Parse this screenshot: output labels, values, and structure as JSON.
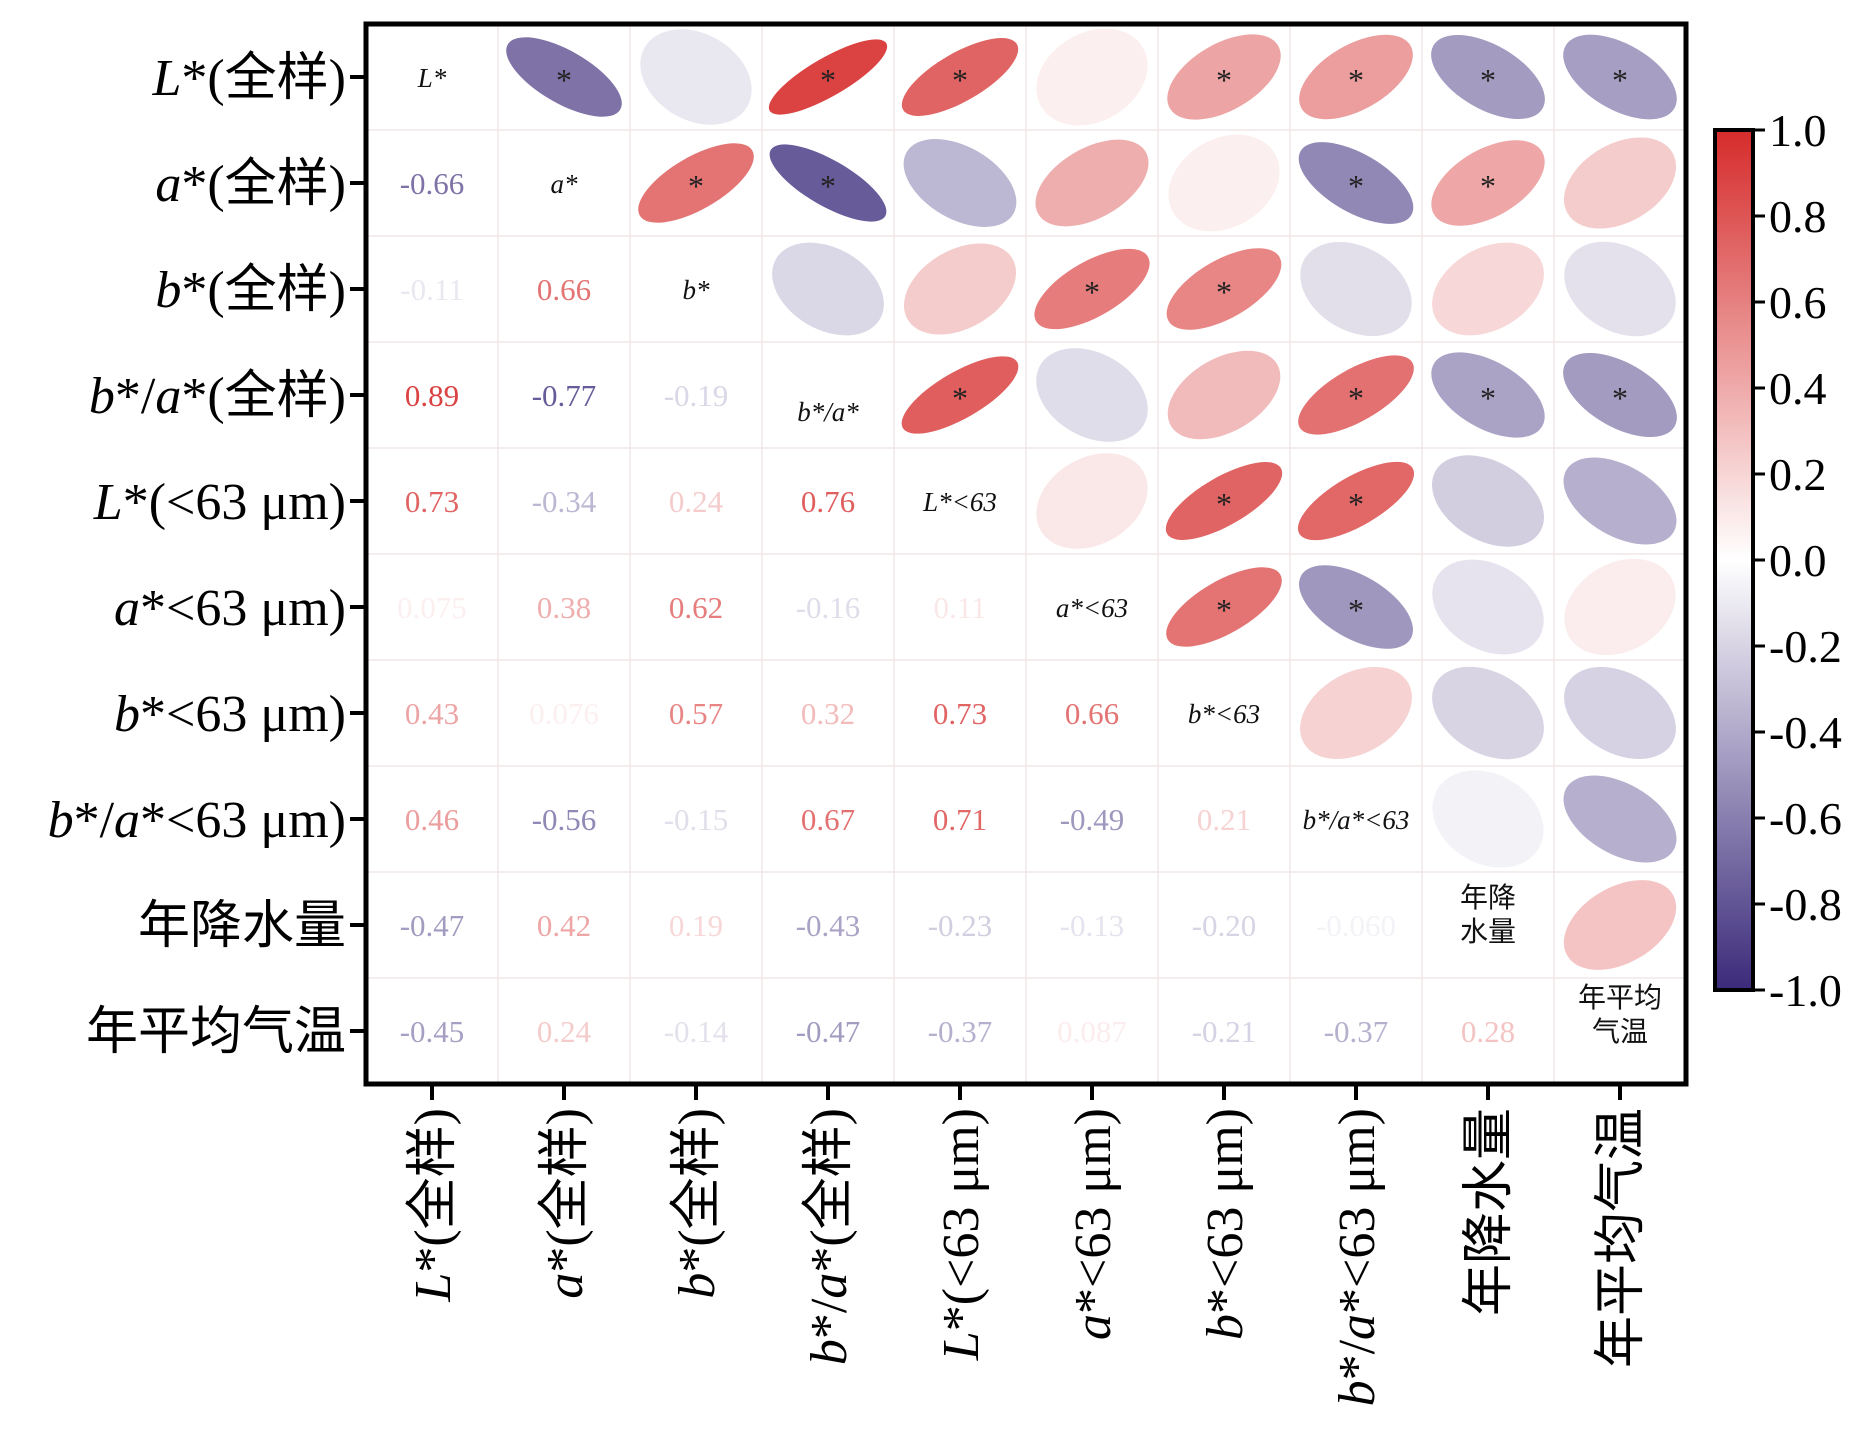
{
  "chart_data": {
    "type": "heatmap",
    "variables": [
      {
        "row_label": "L*(全样)",
        "col_label": "L*(全样)",
        "diag_label": "L*"
      },
      {
        "row_label": "a*(全样)",
        "col_label": "a*(全样)",
        "diag_label": "a*"
      },
      {
        "row_label": "b*(全样)",
        "col_label": "b*(全样)",
        "diag_label": "b*"
      },
      {
        "row_label": "b*/a*(全样)",
        "col_label": "b*/a*(全样)",
        "diag_label": "b*/a*"
      },
      {
        "row_label": "L*(<63 μm)",
        "col_label": "L*(<63 μm)",
        "diag_label": "L*<63"
      },
      {
        "row_label": "a*<63 μm)",
        "col_label": "a*<63 μm)",
        "diag_label": "a*<63"
      },
      {
        "row_label": "b*<63 μm)",
        "col_label": "b*<63 μm)",
        "diag_label": "b*<63"
      },
      {
        "row_label": "b*/a*<63 μm)",
        "col_label": "b*/a*<63 μm)",
        "diag_label": "b*/a*<63"
      },
      {
        "row_label": "年降水量",
        "col_label": "年降水量",
        "diag_label": "年降水量"
      },
      {
        "row_label": "年平均气温",
        "col_label": "年平均气温",
        "diag_label": "年平均气温"
      }
    ],
    "lower_labels": [
      [
        "-0.66"
      ],
      [
        "-0.11",
        "0.66"
      ],
      [
        "0.89",
        "-0.77",
        "-0.19"
      ],
      [
        "0.73",
        "-0.34",
        "0.24",
        "0.76"
      ],
      [
        "0.075",
        "0.38",
        "0.62",
        "-0.16",
        "0.11"
      ],
      [
        "0.43",
        "0.076",
        "0.57",
        "0.32",
        "0.73",
        "0.66"
      ],
      [
        "0.46",
        "-0.56",
        "-0.15",
        "0.67",
        "0.71",
        "-0.49",
        "0.21"
      ],
      [
        "-0.47",
        "0.42",
        "0.19",
        "-0.43",
        "-0.23",
        "-0.13",
        "-0.20",
        "-0.060"
      ],
      [
        "-0.45",
        "0.24",
        "-0.14",
        "-0.47",
        "-0.37",
        "0.087",
        "-0.21",
        "-0.37",
        "0.28"
      ]
    ],
    "matrix": [
      [
        1,
        -0.66,
        -0.11,
        0.89,
        0.73,
        0.075,
        0.43,
        0.46,
        -0.47,
        -0.45
      ],
      [
        -0.66,
        1,
        0.66,
        -0.77,
        -0.34,
        0.38,
        0.076,
        -0.56,
        0.42,
        0.24
      ],
      [
        -0.11,
        0.66,
        1,
        -0.19,
        0.24,
        0.62,
        0.57,
        -0.15,
        0.19,
        -0.14
      ],
      [
        0.89,
        -0.77,
        -0.19,
        1,
        0.76,
        -0.16,
        0.32,
        0.67,
        -0.43,
        -0.47
      ],
      [
        0.73,
        -0.34,
        0.24,
        0.76,
        1,
        0.11,
        0.73,
        0.71,
        -0.23,
        -0.37
      ],
      [
        0.075,
        0.38,
        0.62,
        -0.16,
        0.11,
        1,
        0.66,
        -0.49,
        -0.13,
        0.087
      ],
      [
        0.43,
        0.076,
        0.57,
        0.32,
        0.73,
        0.66,
        1,
        0.21,
        -0.2,
        -0.21
      ],
      [
        0.46,
        -0.56,
        -0.15,
        0.67,
        0.71,
        -0.49,
        0.21,
        1,
        -0.06,
        -0.37
      ],
      [
        -0.47,
        0.42,
        0.19,
        -0.43,
        -0.23,
        -0.13,
        -0.2,
        -0.06,
        1,
        0.28
      ],
      [
        -0.45,
        0.24,
        -0.14,
        -0.47,
        -0.37,
        0.087,
        -0.21,
        -0.37,
        0.28,
        1
      ]
    ],
    "significant_mark": "*",
    "significance_threshold_abs_r": 0.4,
    "colorbar": {
      "range": [
        -1.0,
        1.0
      ],
      "ticks": [
        "1.0",
        "0.8",
        "0.6",
        "0.4",
        "0.2",
        "0.0",
        "-0.2",
        "-0.4",
        "-0.6",
        "-0.8",
        "-1.0"
      ],
      "negative_color": "#3b2a7a",
      "neutral_color": "#ffffff",
      "positive_color": "#d62b2b"
    },
    "grid": true
  }
}
